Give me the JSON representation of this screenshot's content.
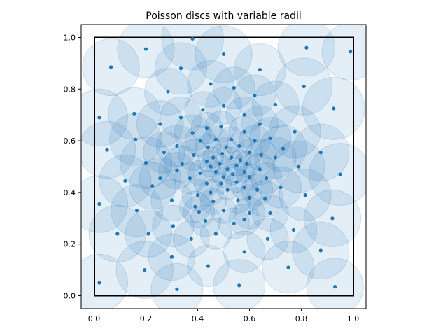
{
  "chart_data": {
    "type": "scatter",
    "title": "Poisson discs with variable radii",
    "xlabel": "",
    "ylabel": "",
    "xlim": [
      -0.05,
      1.05
    ],
    "ylim": [
      -0.05,
      1.05
    ],
    "x_ticks": [
      "0.0",
      "0.2",
      "0.4",
      "0.6",
      "0.8",
      "1.0"
    ],
    "y_ticks": [
      "0.0",
      "0.2",
      "0.4",
      "0.6",
      "0.8",
      "1.0"
    ],
    "x_tick_values": [
      0.0,
      0.2,
      0.4,
      0.6,
      0.8,
      1.0
    ],
    "y_tick_values": [
      0.0,
      0.2,
      0.4,
      0.6,
      0.8,
      1.0
    ],
    "grid": false,
    "legend": "none",
    "unit_square": [
      0,
      1
    ],
    "colors": {
      "point": "#1f77b4",
      "disc_fill": "#1f77b4",
      "disc_alpha": 0.12,
      "square": "#000000"
    },
    "points": [
      {
        "x": 0.38,
        "y": 0.995,
        "r": 0.12
      },
      {
        "x": 0.2,
        "y": 0.955,
        "r": 0.11
      },
      {
        "x": 0.5,
        "y": 0.935,
        "r": 0.11
      },
      {
        "x": 0.82,
        "y": 0.96,
        "r": 0.11
      },
      {
        "x": 0.99,
        "y": 0.945,
        "r": 0.11
      },
      {
        "x": 0.065,
        "y": 0.885,
        "r": 0.11
      },
      {
        "x": 0.335,
        "y": 0.88,
        "r": 0.1
      },
      {
        "x": 0.64,
        "y": 0.875,
        "r": 0.1
      },
      {
        "x": 0.45,
        "y": 0.82,
        "r": 0.09
      },
      {
        "x": 0.81,
        "y": 0.81,
        "r": 0.11
      },
      {
        "x": 0.54,
        "y": 0.805,
        "r": 0.08
      },
      {
        "x": 0.285,
        "y": 0.79,
        "r": 0.09
      },
      {
        "x": 0.62,
        "y": 0.775,
        "r": 0.08
      },
      {
        "x": 0.7,
        "y": 0.74,
        "r": 0.09
      },
      {
        "x": 0.5,
        "y": 0.735,
        "r": 0.07
      },
      {
        "x": 0.925,
        "y": 0.725,
        "r": 0.12
      },
      {
        "x": 0.42,
        "y": 0.72,
        "r": 0.07
      },
      {
        "x": 0.155,
        "y": 0.705,
        "r": 0.1
      },
      {
        "x": 0.58,
        "y": 0.7,
        "r": 0.07
      },
      {
        "x": 0.02,
        "y": 0.69,
        "r": 0.11
      },
      {
        "x": 0.335,
        "y": 0.69,
        "r": 0.08
      },
      {
        "x": 0.64,
        "y": 0.665,
        "r": 0.07
      },
      {
        "x": 0.255,
        "y": 0.665,
        "r": 0.09
      },
      {
        "x": 0.49,
        "y": 0.655,
        "r": 0.06
      },
      {
        "x": 0.435,
        "y": 0.65,
        "r": 0.06
      },
      {
        "x": 0.58,
        "y": 0.635,
        "r": 0.06
      },
      {
        "x": 0.775,
        "y": 0.635,
        "r": 0.1
      },
      {
        "x": 0.38,
        "y": 0.63,
        "r": 0.07
      },
      {
        "x": 0.68,
        "y": 0.61,
        "r": 0.08
      },
      {
        "x": 0.16,
        "y": 0.605,
        "r": 0.1
      },
      {
        "x": 0.53,
        "y": 0.605,
        "r": 0.05
      },
      {
        "x": 0.47,
        "y": 0.605,
        "r": 0.05
      },
      {
        "x": 0.62,
        "y": 0.6,
        "r": 0.06
      },
      {
        "x": 0.41,
        "y": 0.6,
        "r": 0.06
      },
      {
        "x": 0.32,
        "y": 0.58,
        "r": 0.08
      },
      {
        "x": 0.56,
        "y": 0.58,
        "r": 0.05
      },
      {
        "x": 0.44,
        "y": 0.575,
        "r": 0.05
      },
      {
        "x": 0.51,
        "y": 0.575,
        "r": 0.04
      },
      {
        "x": 0.05,
        "y": 0.565,
        "r": 0.11
      },
      {
        "x": 0.73,
        "y": 0.57,
        "r": 0.09
      },
      {
        "x": 0.27,
        "y": 0.555,
        "r": 0.08
      },
      {
        "x": 0.6,
        "y": 0.555,
        "r": 0.05
      },
      {
        "x": 0.385,
        "y": 0.545,
        "r": 0.06
      },
      {
        "x": 0.875,
        "y": 0.555,
        "r": 0.11
      },
      {
        "x": 0.495,
        "y": 0.55,
        "r": 0.04
      },
      {
        "x": 0.645,
        "y": 0.545,
        "r": 0.06
      },
      {
        "x": 0.46,
        "y": 0.535,
        "r": 0.04
      },
      {
        "x": 0.53,
        "y": 0.535,
        "r": 0.04
      },
      {
        "x": 0.565,
        "y": 0.525,
        "r": 0.04
      },
      {
        "x": 0.435,
        "y": 0.52,
        "r": 0.04
      },
      {
        "x": 0.7,
        "y": 0.535,
        "r": 0.08
      },
      {
        "x": 0.2,
        "y": 0.515,
        "r": 0.1
      },
      {
        "x": 0.485,
        "y": 0.51,
        "r": 0.04
      },
      {
        "x": 0.59,
        "y": 0.51,
        "r": 0.05
      },
      {
        "x": 0.34,
        "y": 0.51,
        "r": 0.07
      },
      {
        "x": 0.45,
        "y": 0.5,
        "r": 0.04
      },
      {
        "x": 0.55,
        "y": 0.505,
        "r": 0.04
      },
      {
        "x": 0.79,
        "y": 0.5,
        "r": 0.1
      },
      {
        "x": 0.515,
        "y": 0.49,
        "r": 0.04
      },
      {
        "x": 0.64,
        "y": 0.49,
        "r": 0.06
      },
      {
        "x": 0.47,
        "y": 0.48,
        "r": 0.04
      },
      {
        "x": 0.58,
        "y": 0.48,
        "r": 0.04
      },
      {
        "x": 0.32,
        "y": 0.485,
        "r": 0.07
      },
      {
        "x": 0.41,
        "y": 0.475,
        "r": 0.05
      },
      {
        "x": 0.95,
        "y": 0.47,
        "r": 0.12
      },
      {
        "x": 0.535,
        "y": 0.47,
        "r": 0.04
      },
      {
        "x": 0.5,
        "y": 0.46,
        "r": 0.04
      },
      {
        "x": 0.6,
        "y": 0.46,
        "r": 0.05
      },
      {
        "x": 0.37,
        "y": 0.455,
        "r": 0.06
      },
      {
        "x": 0.255,
        "y": 0.455,
        "r": 0.08
      },
      {
        "x": 0.665,
        "y": 0.455,
        "r": 0.06
      },
      {
        "x": 0.12,
        "y": 0.445,
        "r": 0.1
      },
      {
        "x": 0.55,
        "y": 0.44,
        "r": 0.04
      },
      {
        "x": 0.49,
        "y": 0.435,
        "r": 0.04
      },
      {
        "x": 0.435,
        "y": 0.435,
        "r": 0.05
      },
      {
        "x": 0.225,
        "y": 0.425,
        "r": 0.09
      },
      {
        "x": 0.58,
        "y": 0.42,
        "r": 0.05
      },
      {
        "x": 0.72,
        "y": 0.42,
        "r": 0.08
      },
      {
        "x": 0.515,
        "y": 0.41,
        "r": 0.04
      },
      {
        "x": 0.63,
        "y": 0.41,
        "r": 0.06
      },
      {
        "x": 0.45,
        "y": 0.4,
        "r": 0.05
      },
      {
        "x": 0.4,
        "y": 0.39,
        "r": 0.06
      },
      {
        "x": 0.815,
        "y": 0.39,
        "r": 0.1
      },
      {
        "x": 0.6,
        "y": 0.38,
        "r": 0.05
      },
      {
        "x": 0.555,
        "y": 0.37,
        "r": 0.05
      },
      {
        "x": 0.3,
        "y": 0.37,
        "r": 0.08
      },
      {
        "x": 0.46,
        "y": 0.365,
        "r": 0.05
      },
      {
        "x": 0.66,
        "y": 0.375,
        "r": 0.07
      },
      {
        "x": 0.02,
        "y": 0.355,
        "r": 0.11
      },
      {
        "x": 0.39,
        "y": 0.345,
        "r": 0.06
      },
      {
        "x": 0.5,
        "y": 0.33,
        "r": 0.05
      },
      {
        "x": 0.165,
        "y": 0.33,
        "r": 0.1
      },
      {
        "x": 0.405,
        "y": 0.325,
        "r": 0.06
      },
      {
        "x": 0.68,
        "y": 0.32,
        "r": 0.07
      },
      {
        "x": 0.6,
        "y": 0.32,
        "r": 0.06
      },
      {
        "x": 0.92,
        "y": 0.3,
        "r": 0.11
      },
      {
        "x": 0.58,
        "y": 0.295,
        "r": 0.06
      },
      {
        "x": 0.43,
        "y": 0.29,
        "r": 0.06
      },
      {
        "x": 0.54,
        "y": 0.28,
        "r": 0.06
      },
      {
        "x": 0.305,
        "y": 0.27,
        "r": 0.08
      },
      {
        "x": 0.77,
        "y": 0.255,
        "r": 0.09
      },
      {
        "x": 0.09,
        "y": 0.24,
        "r": 0.11
      },
      {
        "x": 0.47,
        "y": 0.24,
        "r": 0.06
      },
      {
        "x": 0.21,
        "y": 0.24,
        "r": 0.09
      },
      {
        "x": 0.375,
        "y": 0.22,
        "r": 0.07
      },
      {
        "x": 0.67,
        "y": 0.22,
        "r": 0.08
      },
      {
        "x": 0.58,
        "y": 0.17,
        "r": 0.08
      },
      {
        "x": 0.875,
        "y": 0.175,
        "r": 0.11
      },
      {
        "x": 0.3,
        "y": 0.15,
        "r": 0.09
      },
      {
        "x": 0.44,
        "y": 0.115,
        "r": 0.08
      },
      {
        "x": 0.75,
        "y": 0.11,
        "r": 0.1
      },
      {
        "x": 0.195,
        "y": 0.1,
        "r": 0.11
      },
      {
        "x": 0.02,
        "y": 0.05,
        "r": 0.11
      },
      {
        "x": 0.56,
        "y": 0.04,
        "r": 0.1
      },
      {
        "x": 0.93,
        "y": 0.035,
        "r": 0.11
      },
      {
        "x": 0.32,
        "y": 0.025,
        "r": 0.1
      }
    ]
  }
}
